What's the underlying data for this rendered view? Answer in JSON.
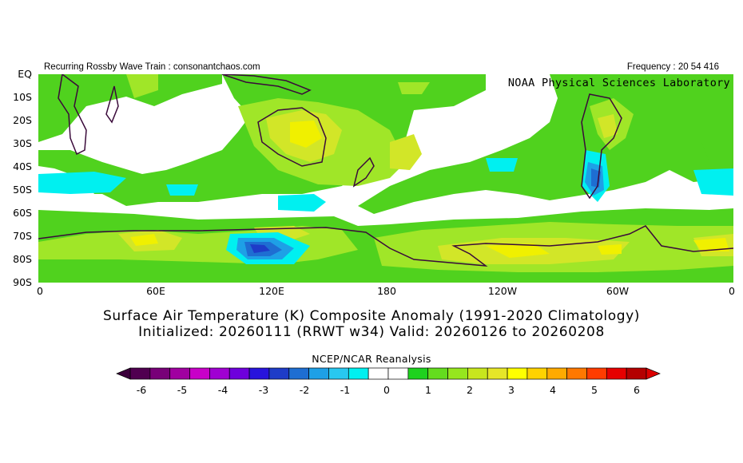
{
  "header": {
    "left_text": "Recurring Rossby Wave Train : consonantchaos.com",
    "right_text": "Frequency : 20 54 416"
  },
  "map": {
    "lab_label": "NOAA Physical Sciences Laboratory",
    "lat_labels": [
      "EQ",
      "10S",
      "20S",
      "30S",
      "40S",
      "50S",
      "60S",
      "70S",
      "80S",
      "90S"
    ],
    "lon_labels": [
      "0",
      "60E",
      "120E",
      "180",
      "120W",
      "60W",
      "0"
    ],
    "land_outline_color": "#3a0a3a"
  },
  "titles": {
    "line1": "Surface Air Temperature (K) Composite Anomaly (1991-2020 Climatology)",
    "line2": "Initialized: 20260111 (RRWT w34) Valid: 20260126 to 20260208"
  },
  "colorbar": {
    "label": "NCEP/NCAR Reanalysis",
    "tick_labels": [
      "-6",
      "-5",
      "-4",
      "-3",
      "-2",
      "-1",
      "0",
      "1",
      "2",
      "3",
      "4",
      "5",
      "6"
    ],
    "colors": [
      "#500050",
      "#780078",
      "#a000a0",
      "#c800c8",
      "#a000d2",
      "#6e00dc",
      "#2814dc",
      "#1e3cc8",
      "#1e6ed2",
      "#1ea0e6",
      "#28c8f0",
      "#00f0f0",
      "#ffffff",
      "#ffffff",
      "#1ed21e",
      "#64dc1e",
      "#96e61e",
      "#c8e61e",
      "#e6e628",
      "#ffff00",
      "#ffd200",
      "#ffaa00",
      "#ff7800",
      "#ff3c00",
      "#e60000",
      "#b40000"
    ],
    "fill_colors": {
      "light_green": "#50d21e",
      "green_yellow": "#a0e628",
      "yellow_green": "#d2e628",
      "yellow": "#f0f000",
      "cyan": "#00f0f0",
      "light_blue": "#1ea0e6",
      "blue": "#1e6ed2",
      "dark_blue": "#1e3cc8"
    }
  }
}
